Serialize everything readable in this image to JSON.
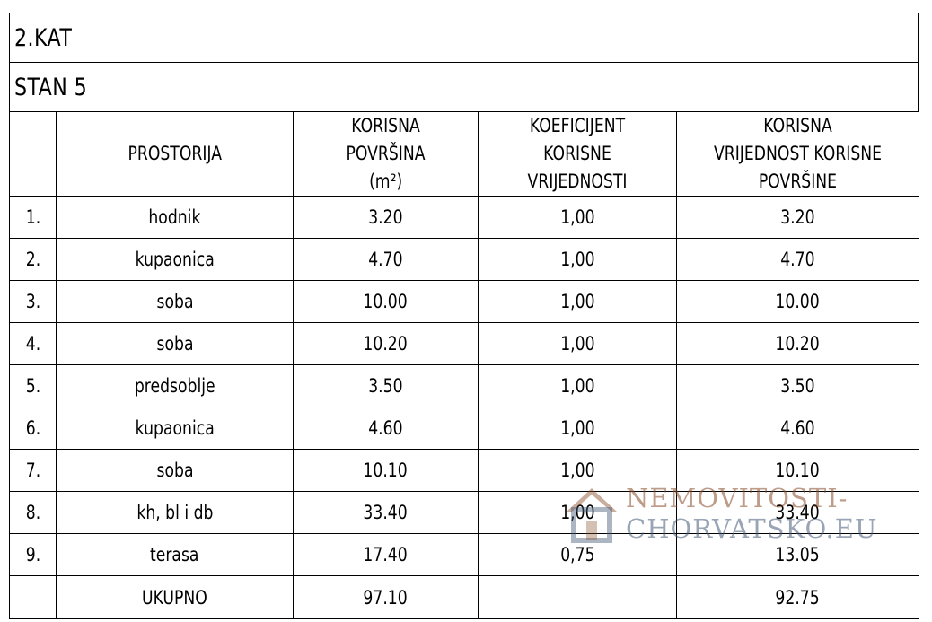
{
  "floor_label": "2.KAT",
  "unit_label": "STAN 5",
  "headers": {
    "index": "",
    "room": "PROSTORIJA",
    "area": "KORISNA POVRŠINA",
    "area_unit": "(m²)",
    "coefficient": "KOEFICIJENT KORISNE VRIJEDNOSTI",
    "value": "KORISNA VRIJEDNOST KORISNE POVRŠINE"
  },
  "rows": [
    {
      "index": "1.",
      "room": "hodnik",
      "area": "3.20",
      "coefficient": "1,00",
      "value": "3.20"
    },
    {
      "index": "2.",
      "room": "kupaonica",
      "area": "4.70",
      "coefficient": "1,00",
      "value": "4.70"
    },
    {
      "index": "3.",
      "room": "soba",
      "area": "10.00",
      "coefficient": "1,00",
      "value": "10.00"
    },
    {
      "index": "4.",
      "room": "soba",
      "area": "10.20",
      "coefficient": "1,00",
      "value": "10.20"
    },
    {
      "index": "5.",
      "room": "predsoblje",
      "area": "3.50",
      "coefficient": "1,00",
      "value": "3.50"
    },
    {
      "index": "6.",
      "room": "kupaonica",
      "area": "4.60",
      "coefficient": "1,00",
      "value": "4.60"
    },
    {
      "index": "7.",
      "room": "soba",
      "area": "10.10",
      "coefficient": "1,00",
      "value": "10.10"
    },
    {
      "index": "8.",
      "room": "kh, bl i db",
      "area": "33.40",
      "coefficient": "1,00",
      "value": "33.40"
    },
    {
      "index": "9.",
      "room": "terasa",
      "area": "17.40",
      "coefficient": "0,75",
      "value": "13.05"
    }
  ],
  "total": {
    "label": "UKUPNO",
    "area": "97.10",
    "value": "92.75"
  },
  "watermark": {
    "line1": "NEMOVITOSTI-",
    "line2": "CHORVATSKO.EU",
    "icon": "house-logo-icon"
  }
}
